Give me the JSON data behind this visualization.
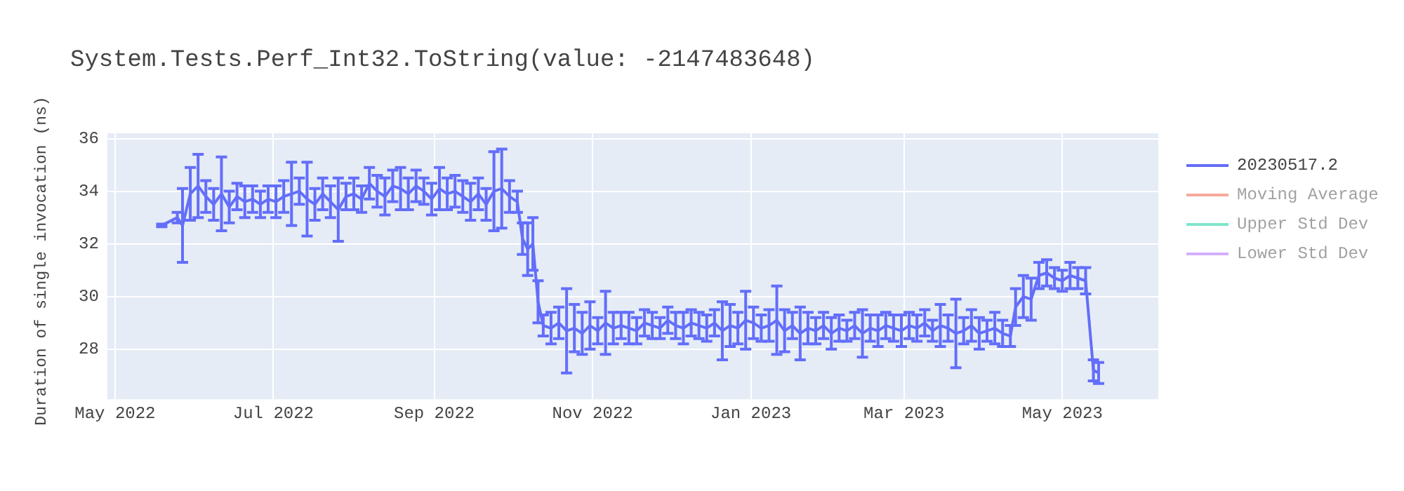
{
  "chart_data": {
    "type": "line",
    "title": "System.Tests.Perf_Int32.ToString(value: -2147483648)",
    "ylabel": "Duration of single invocation (ns)",
    "xlim": [
      "2022-04-28",
      "2023-06-07"
    ],
    "xticks": [
      {
        "value": "2022-05-01",
        "label": "May 2022"
      },
      {
        "value": "2022-07-01",
        "label": "Jul 2022"
      },
      {
        "value": "2022-09-01",
        "label": "Sep 2022"
      },
      {
        "value": "2022-11-01",
        "label": "Nov 2022"
      },
      {
        "value": "2023-01-01",
        "label": "Jan 2023"
      },
      {
        "value": "2023-03-01",
        "label": "Mar 2023"
      },
      {
        "value": "2023-05-01",
        "label": "May 2023"
      }
    ],
    "ylim": [
      26.1,
      36.2
    ],
    "yticks": [
      28,
      30,
      32,
      34,
      36
    ],
    "grid": true,
    "legend": "right",
    "marker": "none",
    "line_style": "solid",
    "series": [
      {
        "name": "20230517.2",
        "color": "#636efa",
        "x": [
          "2022-05-19",
          "2022-05-25",
          "2022-05-27",
          "2022-05-30",
          "2022-06-02",
          "2022-06-05",
          "2022-06-08",
          "2022-06-11",
          "2022-06-14",
          "2022-06-17",
          "2022-06-20",
          "2022-06-23",
          "2022-06-26",
          "2022-06-29",
          "2022-07-02",
          "2022-07-05",
          "2022-07-08",
          "2022-07-11",
          "2022-07-14",
          "2022-07-17",
          "2022-07-20",
          "2022-07-23",
          "2022-07-26",
          "2022-07-29",
          "2022-08-01",
          "2022-08-04",
          "2022-08-07",
          "2022-08-10",
          "2022-08-13",
          "2022-08-16",
          "2022-08-19",
          "2022-08-22",
          "2022-08-25",
          "2022-08-28",
          "2022-08-31",
          "2022-09-03",
          "2022-09-06",
          "2022-09-09",
          "2022-09-12",
          "2022-09-15",
          "2022-09-18",
          "2022-09-21",
          "2022-09-24",
          "2022-09-27",
          "2022-09-30",
          "2022-10-03",
          "2022-10-05",
          "2022-10-07",
          "2022-10-09",
          "2022-10-11",
          "2022-10-13",
          "2022-10-16",
          "2022-10-19",
          "2022-10-22",
          "2022-10-25",
          "2022-10-28",
          "2022-10-31",
          "2022-11-03",
          "2022-11-06",
          "2022-11-09",
          "2022-11-12",
          "2022-11-15",
          "2022-11-18",
          "2022-11-21",
          "2022-11-24",
          "2022-11-27",
          "2022-11-30",
          "2022-12-03",
          "2022-12-06",
          "2022-12-09",
          "2022-12-12",
          "2022-12-15",
          "2022-12-18",
          "2022-12-21",
          "2022-12-24",
          "2022-12-27",
          "2022-12-30",
          "2023-01-02",
          "2023-01-05",
          "2023-01-08",
          "2023-01-11",
          "2023-01-14",
          "2023-01-17",
          "2023-01-20",
          "2023-01-23",
          "2023-01-26",
          "2023-01-29",
          "2023-02-01",
          "2023-02-04",
          "2023-02-07",
          "2023-02-10",
          "2023-02-13",
          "2023-02-16",
          "2023-02-19",
          "2023-02-22",
          "2023-02-25",
          "2023-02-28",
          "2023-03-03",
          "2023-03-06",
          "2023-03-09",
          "2023-03-12",
          "2023-03-15",
          "2023-03-18",
          "2023-03-21",
          "2023-03-24",
          "2023-03-27",
          "2023-03-30",
          "2023-04-02",
          "2023-04-05",
          "2023-04-08",
          "2023-04-11",
          "2023-04-13",
          "2023-04-16",
          "2023-04-19",
          "2023-04-22",
          "2023-04-25",
          "2023-04-28",
          "2023-05-01",
          "2023-05-04",
          "2023-05-07",
          "2023-05-10",
          "2023-05-13",
          "2023-05-15"
        ],
        "values": [
          32.7,
          33.0,
          32.7,
          33.9,
          34.2,
          33.8,
          33.5,
          33.9,
          33.4,
          33.8,
          33.6,
          33.7,
          33.5,
          33.7,
          33.6,
          33.8,
          33.9,
          34.0,
          33.7,
          33.5,
          33.9,
          33.6,
          33.3,
          33.8,
          33.9,
          33.7,
          34.3,
          34.0,
          33.8,
          34.2,
          34.1,
          33.9,
          34.2,
          34.0,
          33.7,
          34.1,
          33.9,
          34.0,
          33.8,
          33.6,
          33.9,
          33.5,
          34.0,
          34.1,
          33.8,
          33.6,
          32.2,
          31.8,
          32.0,
          29.8,
          28.9,
          28.8,
          29.0,
          28.7,
          28.8,
          28.6,
          28.9,
          28.7,
          29.0,
          28.8,
          28.9,
          28.8,
          28.7,
          29.0,
          28.9,
          28.8,
          29.1,
          28.9,
          28.8,
          29.0,
          28.9,
          28.8,
          29.0,
          28.7,
          28.9,
          28.8,
          29.1,
          29.0,
          28.8,
          28.9,
          29.1,
          28.7,
          28.9,
          28.6,
          28.8,
          28.7,
          28.9,
          28.6,
          28.8,
          28.7,
          28.9,
          28.6,
          28.8,
          28.7,
          28.9,
          28.8,
          28.7,
          28.9,
          28.8,
          29.0,
          28.7,
          28.9,
          28.8,
          28.6,
          28.7,
          28.9,
          28.6,
          28.7,
          28.8,
          28.6,
          28.5,
          29.6,
          30.0,
          29.9,
          30.8,
          30.9,
          30.7,
          30.6,
          30.8,
          30.7,
          30.6,
          27.2,
          27.1
        ],
        "errors": [
          0.05,
          0.2,
          1.4,
          1.0,
          1.2,
          0.6,
          0.6,
          1.4,
          0.6,
          0.5,
          0.6,
          0.5,
          0.5,
          0.5,
          0.6,
          0.6,
          1.2,
          0.5,
          1.4,
          0.6,
          0.6,
          0.6,
          1.2,
          0.5,
          0.6,
          0.5,
          0.6,
          0.6,
          0.7,
          0.6,
          0.8,
          0.6,
          0.6,
          0.5,
          0.6,
          0.8,
          0.6,
          0.6,
          0.6,
          0.7,
          0.6,
          0.6,
          1.5,
          1.5,
          0.6,
          0.4,
          0.6,
          1.0,
          1.0,
          0.8,
          0.4,
          0.6,
          0.6,
          1.6,
          0.9,
          0.8,
          0.9,
          0.5,
          1.2,
          0.6,
          0.5,
          0.6,
          0.5,
          0.5,
          0.5,
          0.4,
          0.5,
          0.5,
          0.6,
          0.5,
          0.5,
          0.5,
          0.5,
          1.1,
          0.8,
          0.6,
          1.1,
          0.6,
          0.5,
          0.6,
          1.3,
          0.8,
          0.5,
          1.0,
          0.6,
          0.5,
          0.5,
          0.6,
          0.5,
          0.4,
          0.5,
          0.9,
          0.5,
          0.6,
          0.5,
          0.5,
          0.6,
          0.5,
          0.5,
          0.5,
          0.4,
          0.8,
          0.5,
          1.3,
          0.5,
          0.6,
          0.6,
          0.4,
          0.6,
          0.5,
          0.4,
          0.7,
          0.8,
          0.8,
          0.5,
          0.5,
          0.4,
          0.4,
          0.5,
          0.4,
          0.5,
          0.4,
          0.4
        ]
      },
      {
        "name": "Moving Average",
        "color": "#ef553b"
      },
      {
        "name": "Upper Std Dev",
        "color": "#00cc96"
      },
      {
        "name": "Lower Std Dev",
        "color": "#ab63fa"
      }
    ]
  }
}
